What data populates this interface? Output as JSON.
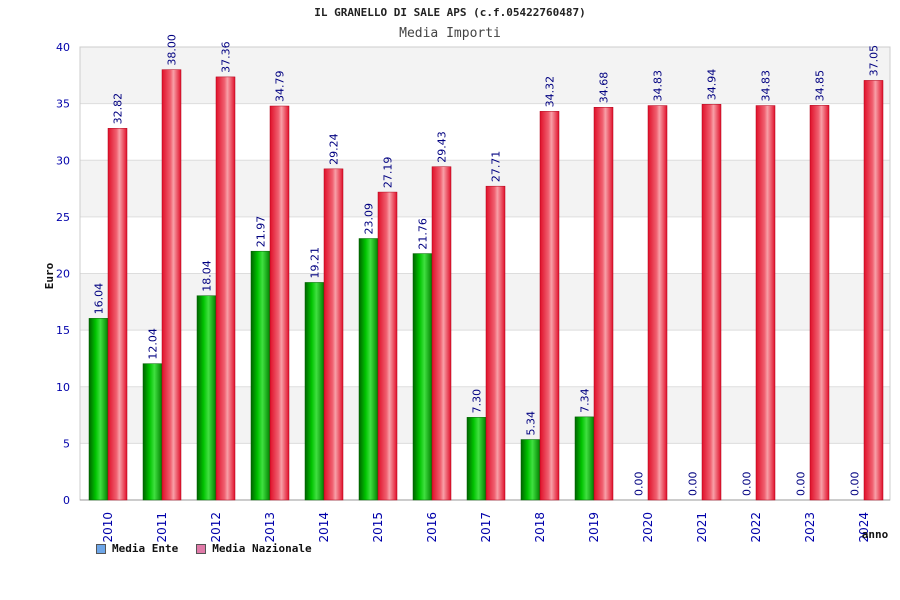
{
  "header": {
    "title": "IL GRANELLO DI SALE APS (c.f.05422760487)",
    "subtitle": "Media Importi"
  },
  "legend": {
    "items": [
      {
        "label": "Media Ente",
        "color": "#6ea6e8"
      },
      {
        "label": "Media Nazionale",
        "color": "#e07aa8"
      }
    ]
  },
  "chart_data": {
    "type": "bar",
    "title": "IL GRANELLO DI SALE APS (c.f.05422760487)",
    "subtitle": "Media Importi",
    "xlabel": "anno",
    "ylabel": "Euro",
    "ylim": [
      0,
      40
    ],
    "yticks": [
      0,
      5,
      10,
      15,
      20,
      25,
      30,
      35,
      40
    ],
    "grid": true,
    "legend_position": "bottom-left",
    "categories": [
      "2010",
      "2011",
      "2012",
      "2013",
      "2014",
      "2015",
      "2016",
      "2017",
      "2018",
      "2019",
      "2020",
      "2021",
      "2022",
      "2023",
      "2024"
    ],
    "series": [
      {
        "name": "Media Ente",
        "color": "#00b000",
        "values": [
          16.04,
          12.04,
          18.04,
          21.97,
          19.21,
          23.09,
          21.76,
          7.3,
          5.34,
          7.34,
          0.0,
          0.0,
          0.0,
          0.0,
          0.0
        ],
        "labels": [
          "16.04",
          "12.04",
          "18.04",
          "21.97",
          "19.21",
          "23.09",
          "21.76",
          "7.30",
          "5.34",
          "7.34",
          "0.00",
          "0.00",
          "0.00",
          "0.00",
          "0.00"
        ]
      },
      {
        "name": "Media Nazionale",
        "color": "#e8102a",
        "values": [
          32.82,
          38.0,
          37.36,
          34.79,
          29.24,
          27.19,
          29.43,
          27.71,
          34.32,
          34.68,
          34.83,
          34.94,
          34.83,
          34.85,
          37.05
        ],
        "labels": [
          "32.82",
          "38.00",
          "37.36",
          "34.79",
          "29.24",
          "27.19",
          "29.43",
          "27.71",
          "34.32",
          "34.68",
          "34.83",
          "34.94",
          "34.83",
          "34.85",
          "37.05"
        ]
      }
    ]
  }
}
